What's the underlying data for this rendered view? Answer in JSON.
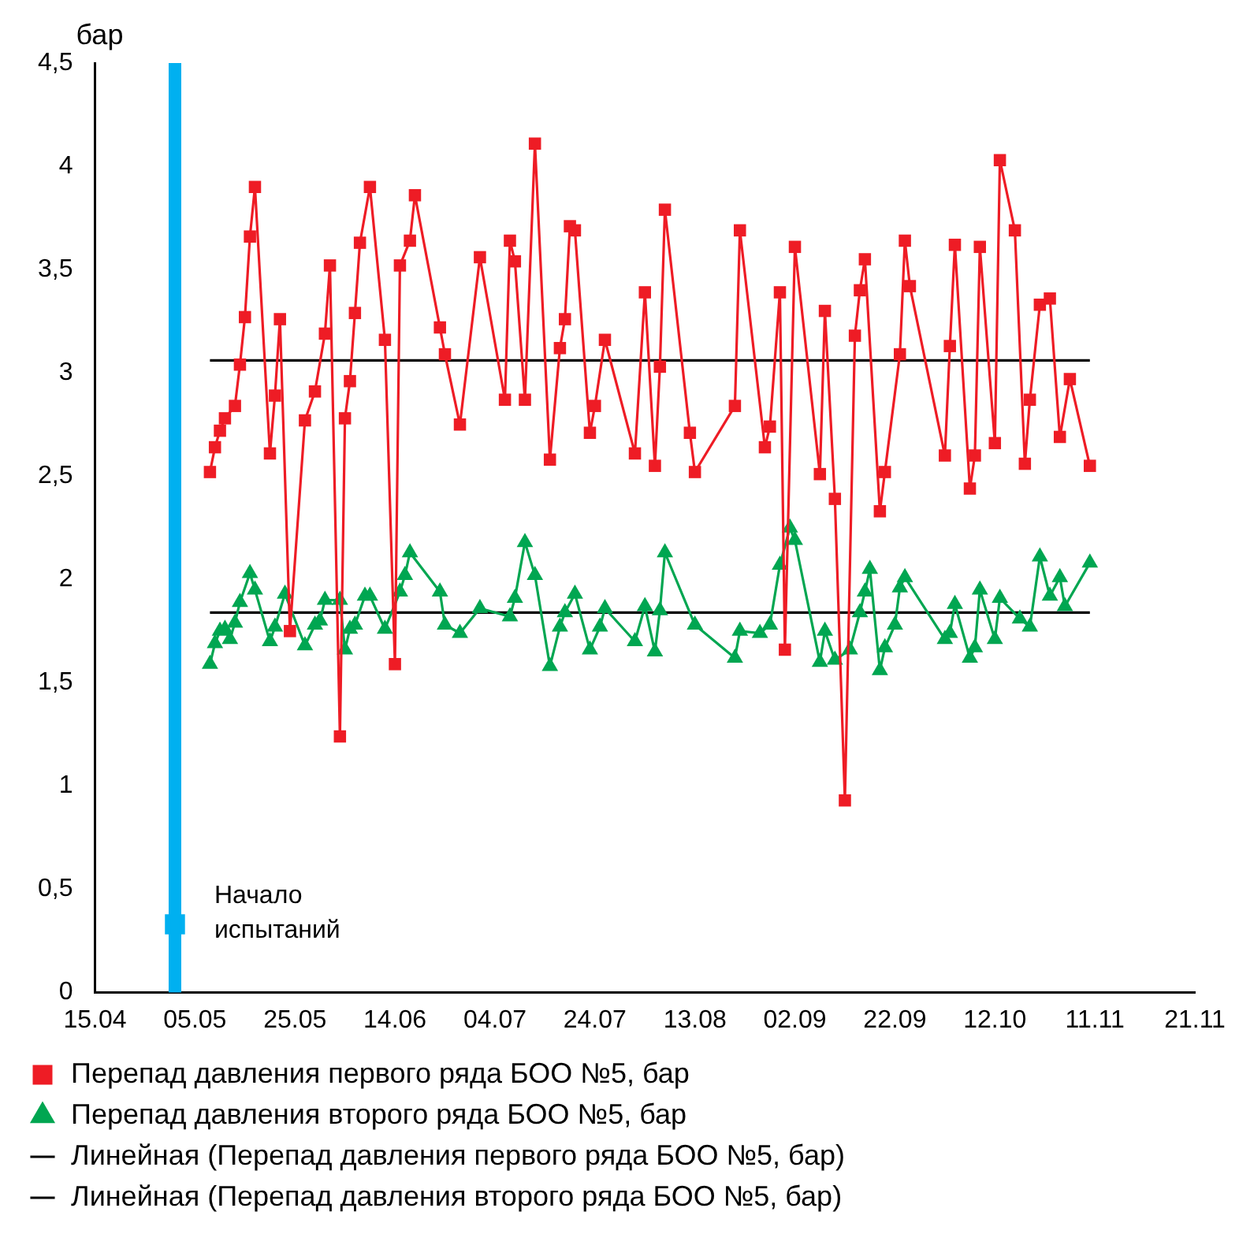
{
  "chart_data": {
    "type": "line",
    "ylabel": "бар",
    "legend": "bottom",
    "grid": false,
    "xlim": [
      "--04-15",
      "--11-21"
    ],
    "xticks": [
      {
        "value": "--04-15",
        "label": "15.04"
      },
      {
        "value": "--05-05",
        "label": "05.05"
      },
      {
        "value": "--05-25",
        "label": "25.05"
      },
      {
        "value": "--06-14",
        "label": "14.06"
      },
      {
        "value": "--07-04",
        "label": "04.07"
      },
      {
        "value": "--07-24",
        "label": "24.07"
      },
      {
        "value": "--08-13",
        "label": "13.08"
      },
      {
        "value": "--09-02",
        "label": "02.09"
      },
      {
        "value": "--09-22",
        "label": "22.09"
      },
      {
        "value": "--10-12",
        "label": "12.10"
      },
      {
        "value": "--11-01",
        "label": "11.11"
      },
      {
        "value": "--11-21",
        "label": "21.11"
      }
    ],
    "ylim": [
      0,
      4.5
    ],
    "yticks": [
      0,
      {
        "value": 0.5,
        "label": "0,5"
      },
      1,
      {
        "value": 1.5,
        "label": "1,5"
      },
      2,
      {
        "value": 2.5,
        "label": "2,5"
      },
      3,
      {
        "value": 3.5,
        "label": "3,5"
      },
      4,
      {
        "value": 4.5,
        "label": "4,5"
      }
    ],
    "ref_lines": [
      {
        "axis": "x",
        "value": "--05-01",
        "label": "Начало испытаний",
        "color": "#00b0f0"
      }
    ],
    "series": [
      {
        "type": "scatter",
        "color": "#00b0f0",
        "marker": "square",
        "x": [
          "--05-01"
        ],
        "values": [
          0.33
        ]
      },
      {
        "name": "Перепад давления первого ряда БОО №5, бар",
        "color": "#ee1c25",
        "marker": "square",
        "x": [
          "--05-08",
          "--05-09",
          "--05-10",
          "--05-11",
          "--05-13",
          "--05-14",
          "--05-15",
          "--05-16",
          "--05-17",
          "--05-20",
          "--05-21",
          "--05-22",
          "--05-24",
          "--05-27",
          "--05-29",
          "--05-31",
          "--06-01",
          "--06-03",
          "--06-04",
          "--06-05",
          "--06-06",
          "--06-07",
          "--06-09",
          "--06-12",
          "--06-14",
          "--06-15",
          "--06-17",
          "--06-18",
          "--06-23",
          "--06-24",
          "--06-27",
          "--07-01",
          "--07-06",
          "--07-07",
          "--07-08",
          "--07-10",
          "--07-12",
          "--07-15",
          "--07-17",
          "--07-18",
          "--07-19",
          "--07-20",
          "--07-23",
          "--07-24",
          "--07-26",
          "--08-01",
          "--08-03",
          "--08-05",
          "--08-06",
          "--08-07",
          "--08-12",
          "--08-13",
          "--08-21",
          "--08-22",
          "--08-27",
          "--08-28",
          "--08-30",
          "--08-31",
          "--09-02",
          "--09-07",
          "--09-08",
          "--09-10",
          "--09-12",
          "--09-14",
          "--09-15",
          "--09-16",
          "--09-19",
          "--09-20",
          "--09-23",
          "--09-24",
          "--09-25",
          "--10-02",
          "--10-03",
          "--10-04",
          "--10-07",
          "--10-08",
          "--10-09",
          "--10-12",
          "--10-13",
          "--10-16",
          "--10-18",
          "--10-19",
          "--10-21",
          "--10-23",
          "--10-25",
          "--10-27",
          "--10-31"
        ],
        "values": [
          2.52,
          2.64,
          2.72,
          2.78,
          2.84,
          3.04,
          3.27,
          3.66,
          3.9,
          2.61,
          2.89,
          3.26,
          1.75,
          2.77,
          2.91,
          3.19,
          3.52,
          1.24,
          2.78,
          2.96,
          3.29,
          3.63,
          3.9,
          3.16,
          1.59,
          3.52,
          3.64,
          3.86,
          3.22,
          3.09,
          2.75,
          3.56,
          2.87,
          3.64,
          3.54,
          2.87,
          4.11,
          2.58,
          3.12,
          3.26,
          3.71,
          3.69,
          2.71,
          2.84,
          3.16,
          2.61,
          3.39,
          2.55,
          3.03,
          3.79,
          2.71,
          2.52,
          2.84,
          3.69,
          2.64,
          2.74,
          3.39,
          1.66,
          3.61,
          2.51,
          3.3,
          2.39,
          0.93,
          3.18,
          3.4,
          3.55,
          2.33,
          2.52,
          3.09,
          3.64,
          3.42,
          2.6,
          3.13,
          3.62,
          2.44,
          2.6,
          3.61,
          2.66,
          4.03,
          3.69,
          2.56,
          2.87,
          3.33,
          3.36,
          2.69,
          2.97,
          2.55
        ]
      },
      {
        "name": "Перепад давления второго ряда БОО №5, бар",
        "color": "#00a651",
        "marker": "triangle",
        "x": [
          "--05-08",
          "--05-09",
          "--05-10",
          "--05-11",
          "--05-12",
          "--05-13",
          "--05-14",
          "--05-16",
          "--05-17",
          "--05-20",
          "--05-21",
          "--05-23",
          "--05-27",
          "--05-29",
          "--05-30",
          "--05-31",
          "--06-03",
          "--06-04",
          "--06-05",
          "--06-06",
          "--06-08",
          "--06-09",
          "--06-12",
          "--06-15",
          "--06-16",
          "--06-17",
          "--06-23",
          "--06-24",
          "--06-27",
          "--07-01",
          "--07-07",
          "--07-08",
          "--07-10",
          "--07-12",
          "--07-15",
          "--07-17",
          "--07-18",
          "--07-20",
          "--07-23",
          "--07-25",
          "--07-26",
          "--08-01",
          "--08-03",
          "--08-05",
          "--08-06",
          "--08-07",
          "--08-13",
          "--08-21",
          "--08-22",
          "--08-26",
          "--08-28",
          "--08-30",
          "--09-01",
          "--09-02",
          "--09-07",
          "--09-08",
          "--09-10",
          "--09-13",
          "--09-15",
          "--09-16",
          "--09-17",
          "--09-19",
          "--09-20",
          "--09-22",
          "--09-23",
          "--09-24",
          "--10-02",
          "--10-03",
          "--10-04",
          "--10-07",
          "--10-08",
          "--10-09",
          "--10-12",
          "--10-13",
          "--10-17",
          "--10-19",
          "--10-21",
          "--10-23",
          "--10-25",
          "--10-26",
          "--10-31"
        ],
        "values": [
          1.59,
          1.69,
          1.75,
          1.76,
          1.71,
          1.79,
          1.89,
          2.03,
          1.95,
          1.7,
          1.77,
          1.93,
          1.68,
          1.78,
          1.8,
          1.9,
          1.9,
          1.66,
          1.76,
          1.78,
          1.92,
          1.92,
          1.76,
          1.94,
          2.02,
          2.13,
          1.94,
          1.78,
          1.74,
          1.86,
          1.82,
          1.91,
          2.18,
          2.02,
          1.58,
          1.77,
          1.84,
          1.93,
          1.66,
          1.77,
          1.86,
          1.7,
          1.87,
          1.65,
          1.85,
          2.13,
          1.78,
          1.62,
          1.75,
          1.74,
          1.78,
          2.07,
          2.25,
          2.19,
          1.6,
          1.75,
          1.61,
          1.66,
          1.84,
          1.94,
          2.05,
          1.56,
          1.67,
          1.78,
          1.96,
          2.01,
          1.71,
          1.74,
          1.88,
          1.62,
          1.67,
          1.95,
          1.71,
          1.91,
          1.81,
          1.77,
          2.11,
          1.92,
          2.01,
          1.87,
          2.08
        ]
      },
      {
        "name": "Линейная (Перепад давления первого ряда БОО №5, бар)",
        "color": "#000000",
        "marker": "none",
        "x": [
          "--05-08",
          "--10-31"
        ],
        "values": [
          3.06,
          3.06
        ]
      },
      {
        "name": "Линейная (Перепад давления второго ряда БОО №5, бар)",
        "color": "#000000",
        "marker": "none",
        "x": [
          "--05-08",
          "--10-31"
        ],
        "values": [
          1.84,
          1.84
        ]
      }
    ]
  }
}
